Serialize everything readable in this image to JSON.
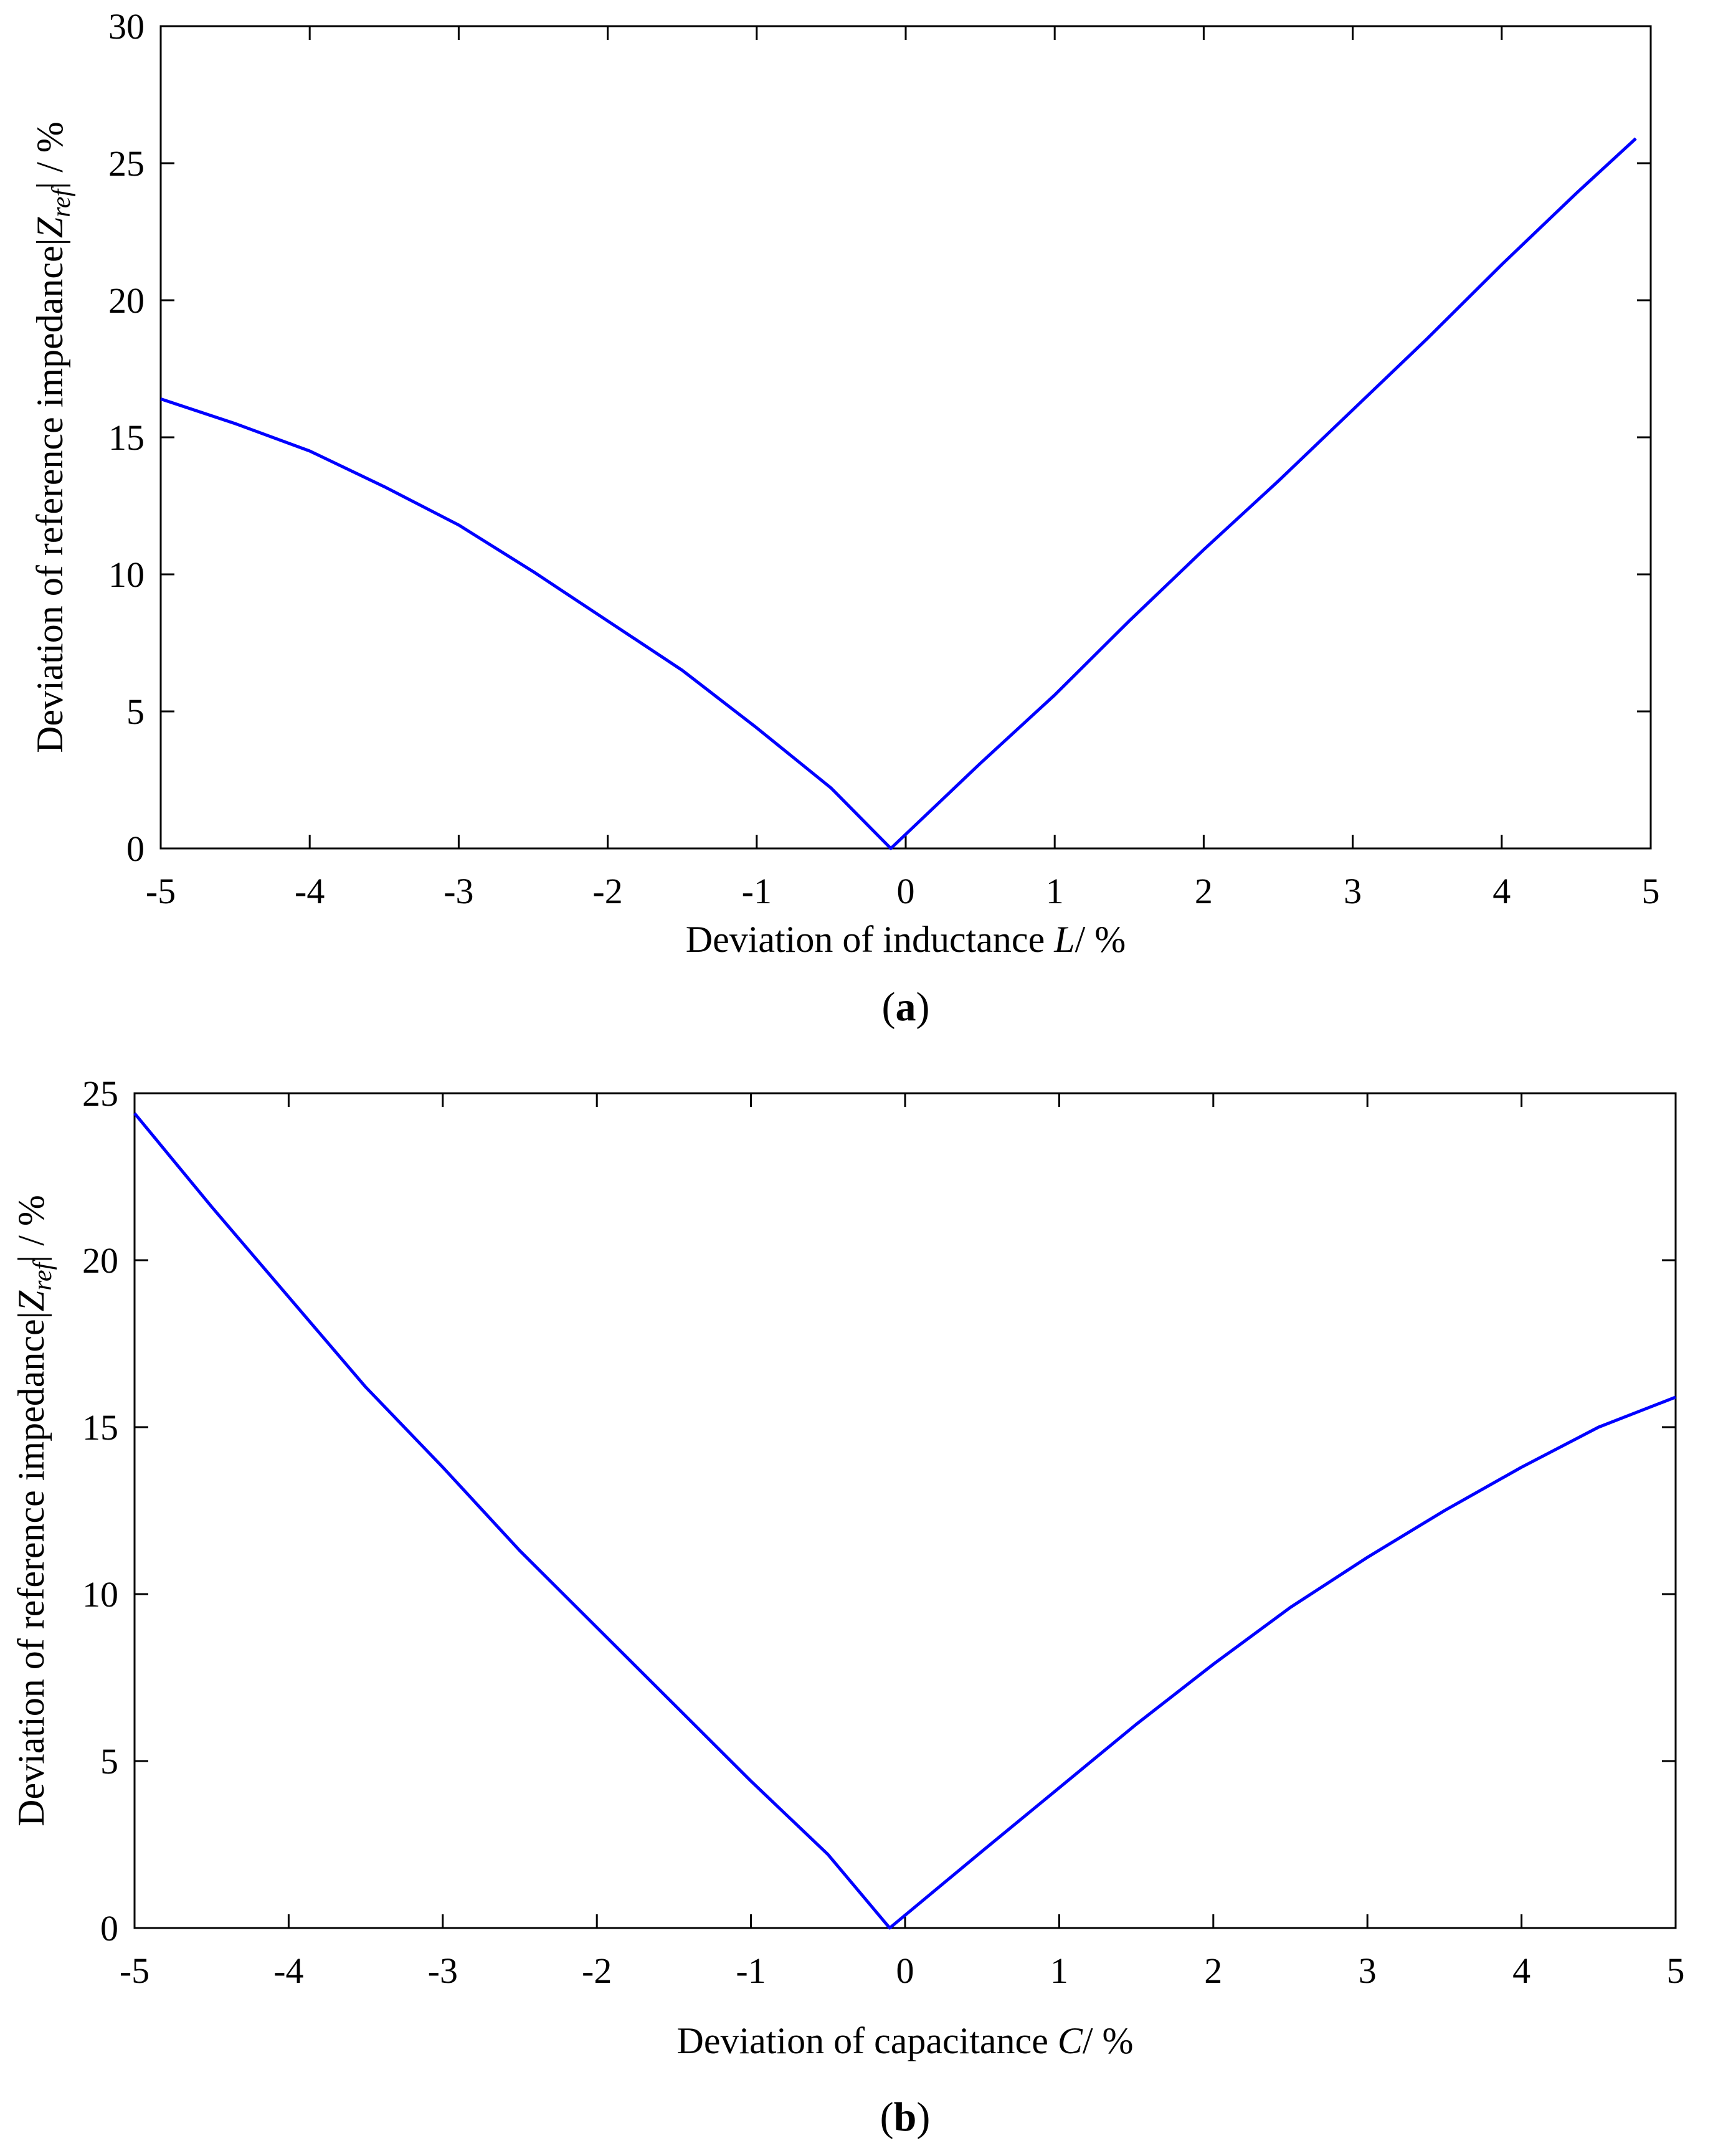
{
  "chart_data": [
    {
      "panel": "a",
      "type": "line",
      "panel_label": "a",
      "xlabel_prefix": "Deviation of inductance ",
      "xlabel_var": "L",
      "xlabel_suffix": "/ %",
      "ylabel_prefix": "Deviation of  reference impedance|",
      "ylabel_var": "Z",
      "ylabel_sub": "ref",
      "ylabel_suffix": "| / %",
      "xlim": [
        -5,
        5
      ],
      "ylim": [
        0,
        30
      ],
      "xticks": [
        "-5",
        "-4",
        "-3",
        "-2",
        "-1",
        "0",
        "1",
        "2",
        "3",
        "4",
        "5"
      ],
      "yticks": [
        "0",
        "5",
        "10",
        "15",
        "20",
        "25",
        "30"
      ],
      "line_color": "#0000ff",
      "series": [
        {
          "x": [
            -5,
            -4.5,
            -4,
            -3.5,
            -3,
            -2.5,
            -2,
            -1.5,
            -1,
            -0.5,
            -0.1,
            0.5,
            1,
            1.5,
            2,
            2.5,
            3,
            3.5,
            4,
            4.5,
            4.9
          ],
          "y": [
            16.4,
            15.5,
            14.5,
            13.2,
            11.8,
            10.1,
            8.3,
            6.5,
            4.4,
            2.2,
            0,
            3.1,
            5.6,
            8.3,
            10.9,
            13.4,
            16.0,
            18.6,
            21.3,
            23.9,
            25.9
          ]
        }
      ]
    },
    {
      "panel": "b",
      "type": "line",
      "panel_label": "b",
      "xlabel_prefix": "Deviation of capacitance ",
      "xlabel_var": "C",
      "xlabel_suffix": "/ %",
      "ylabel_prefix": "Deviation of  reference impedance|",
      "ylabel_var": "Z",
      "ylabel_sub": "ref",
      "ylabel_suffix": "| / %",
      "xlim": [
        -5,
        5
      ],
      "ylim": [
        0,
        25
      ],
      "xticks": [
        "-5",
        "-4",
        "-3",
        "-2",
        "-1",
        "0",
        "1",
        "2",
        "3",
        "4",
        "5"
      ],
      "yticks": [
        "0",
        "5",
        "10",
        "15",
        "20",
        "25"
      ],
      "line_color": "#0000ff",
      "series": [
        {
          "x": [
            -5,
            -4.5,
            -4,
            -3.5,
            -3,
            -2.5,
            -2,
            -1.5,
            -1,
            -0.5,
            -0.1,
            0.5,
            1,
            1.5,
            2,
            2.5,
            3,
            3.5,
            4,
            4.5,
            5
          ],
          "y": [
            24.4,
            21.6,
            18.9,
            16.2,
            13.8,
            11.3,
            9.0,
            6.7,
            4.4,
            2.2,
            0,
            2.3,
            4.2,
            6.1,
            7.9,
            9.6,
            11.1,
            12.5,
            13.8,
            15.0,
            15.9
          ]
        }
      ]
    }
  ]
}
